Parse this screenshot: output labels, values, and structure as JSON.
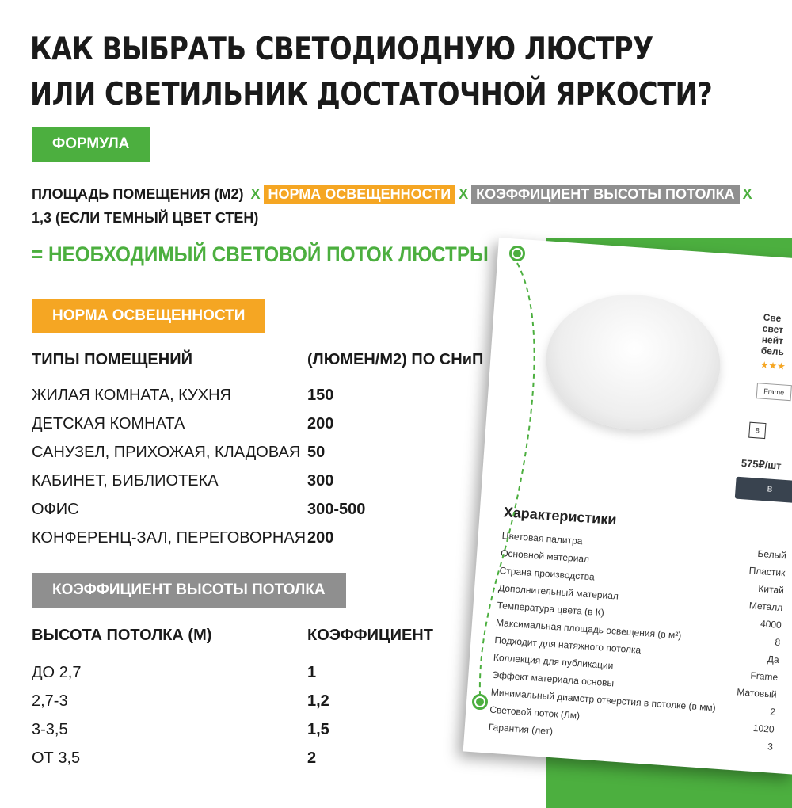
{
  "title": [
    "КАК ВЫБРАТЬ СВЕТОДИОДНУЮ ЛЮСТРУ",
    "ИЛИ СВЕТИЛЬНИК ДОСТАТОЧНОЙ ЯРКОСТИ?"
  ],
  "colors": {
    "green": "#4caf3f",
    "orange": "#f5a623",
    "gray": "#8f8f8f"
  },
  "formula": {
    "tag": "ФОРМУЛА",
    "part1": "ПЛОЩАДЬ ПОМЕЩЕНИЯ (М2)",
    "x": "Х",
    "part2": "НОРМА ОСВЕЩЕННОСТИ",
    "part3": "КОЭФФИЦИЕНТ ВЫСОТЫ ПОТОЛКА",
    "part4": "1,3 (ЕСЛИ ТЕМНЫЙ ЦВЕТ СТЕН)",
    "result": "= НЕОБХОДИМЫЙ СВЕТОВОЙ ПОТОК ЛЮСТРЫ"
  },
  "norm": {
    "tag": "НОРМА ОСВЕЩЕННОСТИ",
    "col1": "ТИПЫ ПОМЕЩЕНИЙ",
    "col2": "(ЛЮМЕН/М2) ПО СНиП",
    "rows": [
      [
        "ЖИЛАЯ КОМНАТА, КУХНЯ",
        "150"
      ],
      [
        "ДЕТСКАЯ КОМНАТА",
        "200"
      ],
      [
        "САНУЗЕЛ, ПРИХОЖАЯ, КЛАДОВАЯ",
        "50"
      ],
      [
        "КАБИНЕТ, БИБЛИОТЕКА",
        "300"
      ],
      [
        "ОФИС",
        "300-500"
      ],
      [
        "КОНФЕРЕНЦ-ЗАЛ, ПЕРЕГОВОРНАЯ",
        "200"
      ]
    ]
  },
  "coef": {
    "tag": "КОЭФФИЦИЕНТ ВЫСОТЫ ПОТОЛКА",
    "col1": "ВЫСОТА ПОТОЛКА (М)",
    "col2": "КОЭФФИЦИЕНТ",
    "rows": [
      [
        "ДО 2,7",
        "1"
      ],
      [
        "2,7-3",
        "1,2"
      ],
      [
        "3-3,5",
        "1,5"
      ],
      [
        "ОТ 3,5",
        "2"
      ]
    ]
  },
  "card": {
    "product_title": [
      "Све",
      "свет",
      "нейт",
      "бель"
    ],
    "collection": "Frame",
    "size": "8",
    "price": "575₽/шт",
    "buy": "В",
    "char_title": "Характеристики",
    "labels": [
      "Цветовая палитра",
      "Основной материал",
      "Страна производства",
      "Дополнительный материал",
      "Температура цвета (в К)",
      "Максимальная площадь освещения (в м²)",
      "Подходит для натяжного потолка",
      "Коллекция для публикации",
      "Эффект материала основы",
      "Минимальный диаметр отверстия в потолке (в мм)",
      "Световой поток (Лм)",
      "Гарантия (лет)"
    ],
    "values": [
      "Белый",
      "Пластик",
      "Китай",
      "Металл",
      "4000",
      "8",
      "Да",
      "Frame",
      "Матовый",
      "2",
      "1020",
      "3"
    ]
  }
}
